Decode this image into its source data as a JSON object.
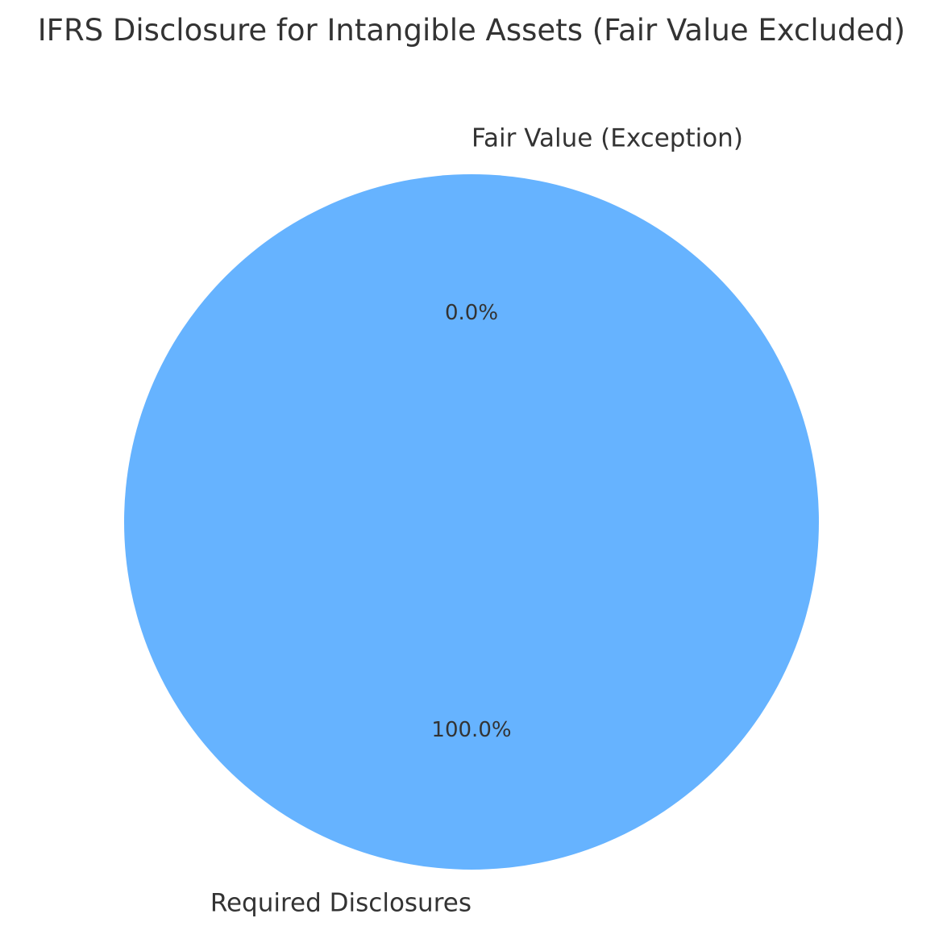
{
  "chart_data": {
    "type": "pie",
    "title": "IFRS Disclosure for Intangible Assets (Fair Value Excluded)",
    "labels": [
      "Required Disclosures",
      "Fair Value (Exception)"
    ],
    "values": [
      100,
      0
    ],
    "percent_labels": [
      "100.0%",
      "0.0%"
    ],
    "colors": [
      "#66b3ff",
      "#ff9999"
    ],
    "start_angle_deg": 90,
    "counterclockwise": true
  }
}
